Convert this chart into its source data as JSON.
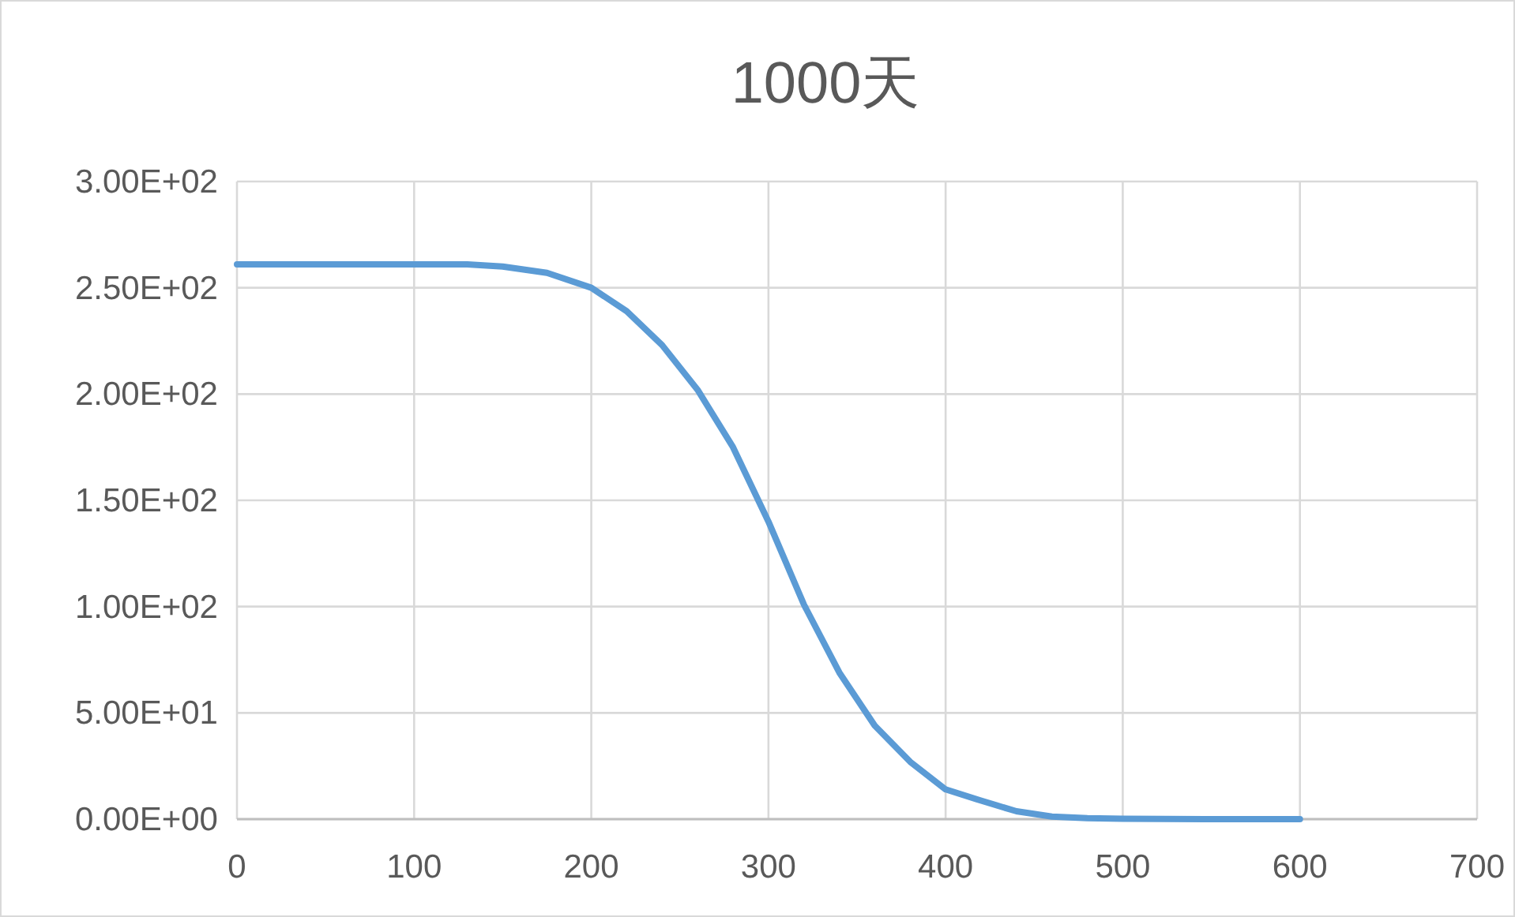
{
  "chart_data": {
    "type": "line",
    "title": "1000天",
    "x": [
      0,
      100,
      130,
      150,
      175,
      200,
      220,
      240,
      260,
      280,
      300,
      320,
      340,
      360,
      380,
      400,
      420,
      440,
      460,
      480,
      500,
      550,
      600
    ],
    "series": [
      {
        "color": "#5b9bd5",
        "values": [
          261,
          261,
          261,
          260,
          257,
          250,
          239,
          223,
          202,
          175,
          140,
          101,
          69,
          44,
          27,
          14,
          8.7,
          3.7,
          1.2,
          0.5,
          0.2,
          0,
          0
        ]
      }
    ],
    "xlim": [
      0,
      700
    ],
    "xticks": [
      0,
      100,
      200,
      300,
      400,
      500,
      600,
      700
    ],
    "ylim": [
      0,
      300
    ],
    "yticks": [
      {
        "value": 0,
        "label": "0.00E+00"
      },
      {
        "value": 50,
        "label": "5.00E+01"
      },
      {
        "value": 100,
        "label": "1.00E+02"
      },
      {
        "value": 150,
        "label": "1.50E+02"
      },
      {
        "value": 200,
        "label": "2.00E+02"
      },
      {
        "value": 250,
        "label": "2.50E+02"
      },
      {
        "value": 300,
        "label": "3.00E+02"
      }
    ],
    "grid": true,
    "marker": "none",
    "line_style": "solid"
  }
}
